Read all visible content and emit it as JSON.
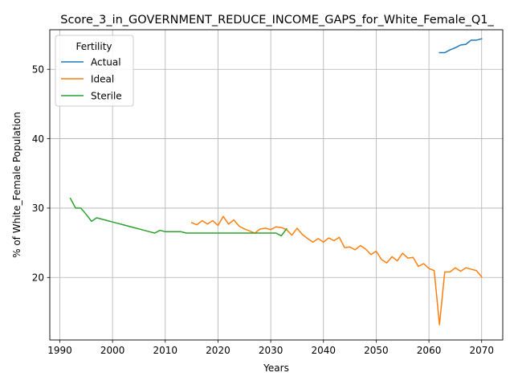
{
  "chart_data": {
    "type": "line",
    "title": "Score_3_in_GOVERNMENT_REDUCE_INCOME_GAPS_for_White_Female_Q1_",
    "xlabel": "Years",
    "ylabel": "% of White_Female Population",
    "xlim": [
      1988.1,
      2074.0
    ],
    "ylim": [
      11.0,
      55.7
    ],
    "xticks": [
      1990,
      2000,
      2010,
      2020,
      2030,
      2040,
      2050,
      2060,
      2070
    ],
    "yticks": [
      20,
      30,
      40,
      50
    ],
    "grid": true,
    "legend": {
      "title": "Fertility",
      "position": "upper left"
    },
    "series": [
      {
        "name": "Actual",
        "color": "#1f77b4",
        "points": [
          [
            2062,
            52.4
          ],
          [
            2063,
            52.4
          ],
          [
            2064,
            52.8
          ],
          [
            2065,
            53.1
          ],
          [
            2066,
            53.5
          ],
          [
            2067,
            53.6
          ],
          [
            2068,
            54.2
          ],
          [
            2069,
            54.2
          ],
          [
            2070,
            54.4
          ]
        ]
      },
      {
        "name": "Ideal",
        "color": "#ff7f0e",
        "points": [
          [
            2015,
            27.9
          ],
          [
            2016,
            27.6
          ],
          [
            2017,
            28.2
          ],
          [
            2018,
            27.7
          ],
          [
            2019,
            28.2
          ],
          [
            2020,
            27.5
          ],
          [
            2021,
            28.8
          ],
          [
            2022,
            27.7
          ],
          [
            2023,
            28.3
          ],
          [
            2024,
            27.4
          ],
          [
            2025,
            27.0
          ],
          [
            2026,
            26.7
          ],
          [
            2027,
            26.4
          ],
          [
            2028,
            27.0
          ],
          [
            2029,
            27.1
          ],
          [
            2030,
            26.9
          ],
          [
            2031,
            27.3
          ],
          [
            2032,
            27.2
          ],
          [
            2033,
            26.9
          ],
          [
            2034,
            26.1
          ],
          [
            2035,
            27.1
          ],
          [
            2036,
            26.2
          ],
          [
            2037,
            25.6
          ],
          [
            2038,
            25.1
          ],
          [
            2039,
            25.6
          ],
          [
            2040,
            25.1
          ],
          [
            2041,
            25.7
          ],
          [
            2042,
            25.3
          ],
          [
            2043,
            25.8
          ],
          [
            2044,
            24.3
          ],
          [
            2045,
            24.4
          ],
          [
            2046,
            24.0
          ],
          [
            2047,
            24.6
          ],
          [
            2048,
            24.1
          ],
          [
            2049,
            23.3
          ],
          [
            2050,
            23.8
          ],
          [
            2051,
            22.6
          ],
          [
            2052,
            22.1
          ],
          [
            2053,
            23.0
          ],
          [
            2054,
            22.4
          ],
          [
            2055,
            23.5
          ],
          [
            2056,
            22.8
          ],
          [
            2057,
            22.9
          ],
          [
            2058,
            21.6
          ],
          [
            2059,
            22.0
          ],
          [
            2060,
            21.3
          ],
          [
            2061,
            21.0
          ],
          [
            2062,
            13.2
          ],
          [
            2063,
            20.8
          ],
          [
            2064,
            20.8
          ],
          [
            2065,
            21.4
          ],
          [
            2066,
            20.9
          ],
          [
            2067,
            21.4
          ],
          [
            2068,
            21.2
          ],
          [
            2069,
            21.0
          ],
          [
            2070,
            20.1
          ]
        ]
      },
      {
        "name": "Sterile",
        "color": "#2ca02c",
        "points": [
          [
            1992,
            31.4
          ],
          [
            1993,
            30.0
          ],
          [
            1994,
            30.0
          ],
          [
            1995,
            29.1
          ],
          [
            1996,
            28.1
          ],
          [
            1997,
            28.6
          ],
          [
            1998,
            28.4
          ],
          [
            1999,
            28.2
          ],
          [
            2000,
            28.0
          ],
          [
            2001,
            27.8
          ],
          [
            2002,
            27.6
          ],
          [
            2003,
            27.4
          ],
          [
            2004,
            27.2
          ],
          [
            2005,
            27.0
          ],
          [
            2006,
            26.8
          ],
          [
            2007,
            26.6
          ],
          [
            2008,
            26.4
          ],
          [
            2009,
            26.8
          ],
          [
            2010,
            26.6
          ],
          [
            2011,
            26.6
          ],
          [
            2012,
            26.6
          ],
          [
            2013,
            26.6
          ],
          [
            2014,
            26.4
          ],
          [
            2015,
            26.4
          ],
          [
            2016,
            26.4
          ],
          [
            2017,
            26.4
          ],
          [
            2018,
            26.4
          ],
          [
            2019,
            26.4
          ],
          [
            2020,
            26.4
          ],
          [
            2021,
            26.4
          ],
          [
            2022,
            26.4
          ],
          [
            2023,
            26.4
          ],
          [
            2024,
            26.4
          ],
          [
            2025,
            26.4
          ],
          [
            2026,
            26.4
          ],
          [
            2027,
            26.4
          ],
          [
            2028,
            26.4
          ],
          [
            2029,
            26.4
          ],
          [
            2030,
            26.4
          ],
          [
            2031,
            26.4
          ],
          [
            2032,
            26.0
          ],
          [
            2033,
            27.0
          ]
        ]
      }
    ]
  }
}
